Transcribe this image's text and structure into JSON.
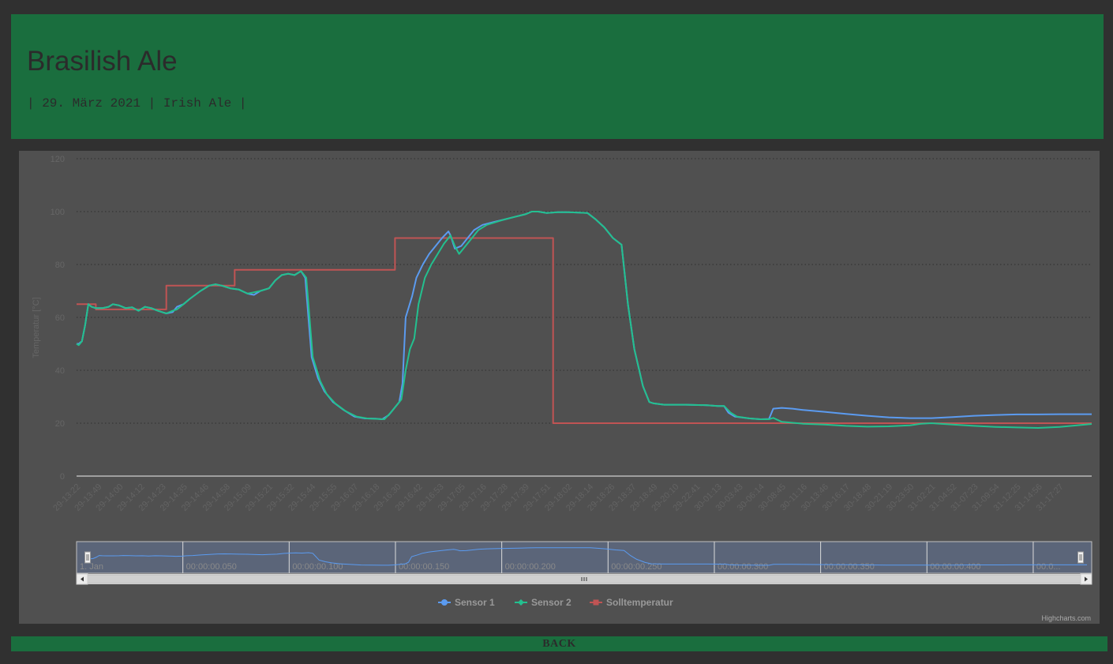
{
  "page": {
    "title": "Brasilish Ale",
    "subtitle": "| 29. März 2021 | Irish Ale |",
    "back_label": "BACK",
    "credits": "Highcharts.com"
  },
  "colors": {
    "background": "#303030",
    "header": "#1a6e3e",
    "panel": "#505050",
    "sensor1": "#5b9bf0",
    "sensor2": "#23c08f",
    "soll": "#c05454"
  },
  "chart_data": {
    "type": "line",
    "ylabel": "Temperatur [°C]",
    "ylim": [
      0,
      120
    ],
    "yticks": [
      0,
      20,
      40,
      60,
      80,
      100,
      120
    ],
    "grid": true,
    "legend_position": "bottom-center",
    "x_tick_labels": [
      "29-13:22",
      "29-13:49",
      "29-14:00",
      "29-14:12",
      "29-14:23",
      "29-14:35",
      "29-14:46",
      "29-14:58",
      "29-15:09",
      "29-15:21",
      "29-15:32",
      "29-15:44",
      "29-15:55",
      "29-16:07",
      "29-16:18",
      "29-16:30",
      "29-16:42",
      "29-16:53",
      "29-17:05",
      "29-17:16",
      "29-17:28",
      "29-17:39",
      "29-17:51",
      "29-18:02",
      "29-18:14",
      "29-18:26",
      "29-18:37",
      "29-18:49",
      "29-20:10",
      "29-22:41",
      "30-01:13",
      "30-03:43",
      "30-06:14",
      "30-08:45",
      "30-11:16",
      "30-13:46",
      "30-16:17",
      "30-18:48",
      "30-21:19",
      "30-23:50",
      "31-02:21",
      "31-04:52",
      "31-07:23",
      "31-09:54",
      "31-12:25",
      "31-14:56",
      "31-17:27"
    ],
    "x_range": [
      0,
      47.5
    ],
    "series": [
      {
        "name": "Sensor 1",
        "marker": "circle",
        "color": "#5b9bf0",
        "points": [
          [
            0,
            50
          ],
          [
            0.1,
            50
          ],
          [
            0.25,
            51
          ],
          [
            0.4,
            57
          ],
          [
            0.55,
            65
          ],
          [
            0.7,
            64
          ],
          [
            0.9,
            63.5
          ],
          [
            1.2,
            63.5
          ],
          [
            1.5,
            64
          ],
          [
            1.7,
            65
          ],
          [
            2,
            64.5
          ],
          [
            2.3,
            63.5
          ],
          [
            2.6,
            63.8
          ],
          [
            2.9,
            62.5
          ],
          [
            3.2,
            64
          ],
          [
            3.5,
            63.5
          ],
          [
            3.8,
            62.5
          ],
          [
            4.0,
            62
          ],
          [
            4.2,
            61.5
          ],
          [
            4.5,
            62
          ],
          [
            4.7,
            64
          ],
          [
            5.0,
            65
          ],
          [
            5.3,
            67
          ],
          [
            5.8,
            70
          ],
          [
            6.2,
            72
          ],
          [
            6.5,
            72.5
          ],
          [
            6.8,
            72
          ],
          [
            7.2,
            71
          ],
          [
            7.6,
            70.5
          ],
          [
            8.0,
            69
          ],
          [
            8.3,
            68.5
          ],
          [
            8.6,
            70
          ],
          [
            9.0,
            71
          ],
          [
            9.3,
            74
          ],
          [
            9.6,
            76
          ],
          [
            9.9,
            76.5
          ],
          [
            10.2,
            76
          ],
          [
            10.5,
            77.5
          ],
          [
            10.7,
            75
          ],
          [
            10.85,
            60
          ],
          [
            11.0,
            45
          ],
          [
            11.3,
            37
          ],
          [
            11.6,
            32
          ],
          [
            12.0,
            28
          ],
          [
            12.5,
            25
          ],
          [
            13.0,
            22.5
          ],
          [
            13.5,
            21.8
          ],
          [
            14.0,
            21.7
          ],
          [
            14.3,
            21.5
          ],
          [
            14.6,
            23
          ],
          [
            14.9,
            26
          ],
          [
            15.1,
            28
          ],
          [
            15.25,
            35
          ],
          [
            15.4,
            60
          ],
          [
            15.7,
            68
          ],
          [
            15.9,
            75
          ],
          [
            16.2,
            80
          ],
          [
            16.5,
            84
          ],
          [
            16.8,
            87
          ],
          [
            17.1,
            90
          ],
          [
            17.4,
            92.5
          ],
          [
            17.5,
            91
          ],
          [
            17.7,
            86
          ],
          [
            18.0,
            87
          ],
          [
            18.3,
            90
          ],
          [
            18.6,
            93
          ],
          [
            19.0,
            95
          ],
          [
            19.5,
            96
          ],
          [
            20,
            97
          ],
          [
            20.5,
            98
          ],
          [
            21.0,
            99
          ],
          [
            21.3,
            100
          ],
          [
            21.6,
            100
          ],
          [
            22.0,
            99.5
          ],
          [
            22.5,
            99.8
          ],
          [
            23.0,
            99.8
          ],
          [
            23.5,
            99.6
          ],
          [
            23.9,
            99.5
          ],
          [
            24.3,
            97
          ],
          [
            24.7,
            94
          ],
          [
            25.1,
            90
          ],
          [
            25.5,
            87.5
          ],
          [
            25.8,
            65
          ],
          [
            26.1,
            48
          ],
          [
            26.5,
            34
          ],
          [
            26.8,
            28
          ],
          [
            27.0,
            27.5
          ],
          [
            27.5,
            27
          ],
          [
            28.5,
            27
          ],
          [
            29.5,
            26.8
          ],
          [
            30.0,
            26.5
          ],
          [
            30.3,
            26.5
          ],
          [
            30.5,
            24
          ],
          [
            30.8,
            22.5
          ],
          [
            31.5,
            21.8
          ],
          [
            32.0,
            21.5
          ],
          [
            32.4,
            21.6
          ],
          [
            32.6,
            25.5
          ],
          [
            33.0,
            25.8
          ],
          [
            33.5,
            25.5
          ],
          [
            34,
            25
          ],
          [
            35,
            24.3
          ],
          [
            36,
            23.5
          ],
          [
            37,
            22.8
          ],
          [
            38,
            22.2
          ],
          [
            39,
            21.9
          ],
          [
            40,
            21.9
          ],
          [
            41,
            22.3
          ],
          [
            42,
            22.8
          ],
          [
            43,
            23.1
          ],
          [
            44,
            23.3
          ],
          [
            45,
            23.3
          ],
          [
            46,
            23.4
          ],
          [
            47,
            23.4
          ],
          [
            47.5,
            23.4
          ]
        ]
      },
      {
        "name": "Sensor 2",
        "marker": "diamond",
        "color": "#23c08f",
        "points": [
          [
            0,
            50
          ],
          [
            0.1,
            49.5
          ],
          [
            0.25,
            51
          ],
          [
            0.4,
            57
          ],
          [
            0.55,
            65
          ],
          [
            0.7,
            64
          ],
          [
            0.9,
            63.5
          ],
          [
            1.2,
            63.5
          ],
          [
            1.5,
            64
          ],
          [
            1.7,
            65
          ],
          [
            2,
            64.5
          ],
          [
            2.3,
            63.5
          ],
          [
            2.6,
            63.8
          ],
          [
            2.9,
            62.5
          ],
          [
            3.2,
            64
          ],
          [
            3.5,
            63.5
          ],
          [
            3.8,
            62.5
          ],
          [
            4.0,
            62
          ],
          [
            4.2,
            61.5
          ],
          [
            4.5,
            62.5
          ],
          [
            4.7,
            63
          ],
          [
            5.0,
            65
          ],
          [
            5.3,
            67
          ],
          [
            5.8,
            70
          ],
          [
            6.2,
            72
          ],
          [
            6.5,
            72.5
          ],
          [
            6.8,
            72
          ],
          [
            7.2,
            71
          ],
          [
            7.6,
            70.5
          ],
          [
            8.0,
            69
          ],
          [
            8.3,
            69.5
          ],
          [
            8.6,
            70
          ],
          [
            9.0,
            71
          ],
          [
            9.3,
            74
          ],
          [
            9.6,
            76
          ],
          [
            9.9,
            76.5
          ],
          [
            10.2,
            76
          ],
          [
            10.5,
            77.5
          ],
          [
            10.75,
            75
          ],
          [
            10.9,
            60
          ],
          [
            11.05,
            45
          ],
          [
            11.4,
            36
          ],
          [
            11.7,
            31
          ],
          [
            12.1,
            27.5
          ],
          [
            12.6,
            24.5
          ],
          [
            13.1,
            22.5
          ],
          [
            13.6,
            21.8
          ],
          [
            14.1,
            21.6
          ],
          [
            14.4,
            21.5
          ],
          [
            14.7,
            24
          ],
          [
            15.0,
            27
          ],
          [
            15.2,
            29
          ],
          [
            15.4,
            40
          ],
          [
            15.6,
            48
          ],
          [
            15.8,
            52
          ],
          [
            16.0,
            65
          ],
          [
            16.3,
            75
          ],
          [
            16.6,
            80
          ],
          [
            16.9,
            84
          ],
          [
            17.2,
            88
          ],
          [
            17.5,
            91
          ],
          [
            17.7,
            87
          ],
          [
            17.9,
            84
          ],
          [
            18.2,
            87
          ],
          [
            18.5,
            90
          ],
          [
            18.8,
            93
          ],
          [
            19.2,
            95
          ],
          [
            19.6,
            96
          ],
          [
            20,
            97
          ],
          [
            20.5,
            98
          ],
          [
            21.0,
            99
          ],
          [
            21.3,
            100
          ],
          [
            21.6,
            100
          ],
          [
            22.0,
            99.5
          ],
          [
            22.5,
            99.8
          ],
          [
            23.0,
            99.8
          ],
          [
            23.5,
            99.6
          ],
          [
            23.9,
            99.5
          ],
          [
            24.3,
            97
          ],
          [
            24.7,
            94
          ],
          [
            25.1,
            90
          ],
          [
            25.5,
            87.5
          ],
          [
            25.8,
            65
          ],
          [
            26.1,
            48
          ],
          [
            26.5,
            34
          ],
          [
            26.8,
            28
          ],
          [
            27.0,
            27.5
          ],
          [
            27.5,
            27
          ],
          [
            28.5,
            27
          ],
          [
            29.5,
            26.8
          ],
          [
            30.0,
            26.5
          ],
          [
            30.3,
            26.5
          ],
          [
            30.6,
            24
          ],
          [
            30.9,
            22.5
          ],
          [
            31.5,
            21.8
          ],
          [
            32.0,
            21.5
          ],
          [
            32.4,
            21.5
          ],
          [
            32.6,
            22
          ],
          [
            33.0,
            20.5
          ],
          [
            34,
            19.8
          ],
          [
            35,
            19.5
          ],
          [
            36,
            19
          ],
          [
            37,
            18.7
          ],
          [
            38,
            18.8
          ],
          [
            39,
            19.2
          ],
          [
            39.5,
            19.8
          ],
          [
            40,
            20
          ],
          [
            41,
            19.5
          ],
          [
            42,
            19
          ],
          [
            43,
            18.6
          ],
          [
            44,
            18.4
          ],
          [
            45,
            18.2
          ],
          [
            46,
            18.6
          ],
          [
            47,
            19.3
          ],
          [
            47.5,
            19.7
          ]
        ]
      },
      {
        "name": "Solltemperatur",
        "marker": "square",
        "color": "#c05454",
        "points": [
          [
            0,
            65
          ],
          [
            0.9,
            65
          ],
          [
            0.9,
            63
          ],
          [
            4.2,
            63
          ],
          [
            4.2,
            72
          ],
          [
            7.4,
            72
          ],
          [
            7.4,
            78
          ],
          [
            14.9,
            78
          ],
          [
            14.9,
            90
          ],
          [
            22.3,
            90
          ],
          [
            22.3,
            20
          ],
          [
            47.5,
            20
          ]
        ]
      }
    ]
  },
  "navigator": {
    "tick_labels": [
      "1. Jan",
      "00:00:00.050",
      "00:00:00.100",
      "00:00:00.150",
      "00:00:00.200",
      "00:00:00.250",
      "00:00:00.300",
      "00:00:00.350",
      "00:00:00.400",
      "00:0..."
    ]
  }
}
